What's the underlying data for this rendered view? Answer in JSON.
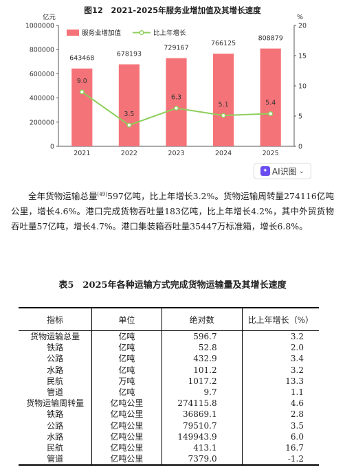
{
  "chart_data": {
    "type": "bar",
    "title": "图12　2021-2025年服务业增加值及其增长速度",
    "left_unit": "亿元",
    "right_unit": "%",
    "categories": [
      "2021",
      "2022",
      "2023",
      "2024",
      "2025"
    ],
    "series": [
      {
        "name": "服务业增加值",
        "type": "bar",
        "axis": "left",
        "values": [
          643468,
          678193,
          729167,
          766125,
          808879
        ]
      },
      {
        "name": "比上年增长",
        "type": "line",
        "axis": "right",
        "values": [
          9.0,
          3.5,
          6.3,
          5.1,
          5.4
        ]
      }
    ],
    "bar_labels": [
      "643468",
      "678193",
      "729167",
      "766125",
      "808879"
    ],
    "line_labels": [
      "9.0",
      "3.5",
      "6.3",
      "5.1",
      "5.4"
    ],
    "left_ticks": [
      "0",
      "200000",
      "400000",
      "600000",
      "800000",
      "1000000"
    ],
    "right_ticks": [
      "0",
      "5",
      "10",
      "15",
      "20"
    ],
    "ylim_left": [
      0,
      1000000
    ],
    "ylim_right": [
      0,
      20
    ],
    "legend_position": "top",
    "colors": {
      "bar": "#f47378",
      "line": "#8dcf5b",
      "marker_fill": "#ffffff",
      "line_label_bg": "#e9455a"
    }
  },
  "ai_button": {
    "label": "AI识图"
  },
  "paragraph": {
    "before_sup": "全年货物运输总量",
    "sup": "[49]",
    "after_sup": "597亿吨，比上年增长3.2%。货物运输周转量274116亿吨公里，增长4.6%。港口完成货物吞吐量183亿吨，比上年增长4.2%，其中外贸货物吞吐量57亿吨，增长4.7%。港口集装箱吞吐量35447万标准箱，增长6.8%。"
  },
  "table": {
    "title": "表5　2025年各种运输方式完成货物运输量及其增长速度",
    "headers": [
      "指标",
      "单位",
      "绝对数",
      "比上年增长（%）"
    ],
    "rows": [
      [
        "货物运输总量",
        "亿吨",
        "596.7",
        "3.2"
      ],
      [
        "铁路",
        "亿吨",
        "52.8",
        "2.0"
      ],
      [
        "公路",
        "亿吨",
        "432.9",
        "3.4"
      ],
      [
        "水路",
        "亿吨",
        "101.2",
        "3.2"
      ],
      [
        "民航",
        "万吨",
        "1017.2",
        "13.3"
      ],
      [
        "管道",
        "亿吨",
        "9.7",
        "1.1"
      ],
      [
        "货物运输周转量",
        "亿吨公里",
        "274115.8",
        "4.6"
      ],
      [
        "铁路",
        "亿吨公里",
        "36869.1",
        "2.8"
      ],
      [
        "公路",
        "亿吨公里",
        "79510.7",
        "3.5"
      ],
      [
        "水路",
        "亿吨公里",
        "149943.9",
        "6.0"
      ],
      [
        "民航",
        "亿吨公里",
        "413.1",
        "16.7"
      ],
      [
        "管道",
        "亿吨公里",
        "7379.0",
        "-1.2"
      ]
    ]
  }
}
